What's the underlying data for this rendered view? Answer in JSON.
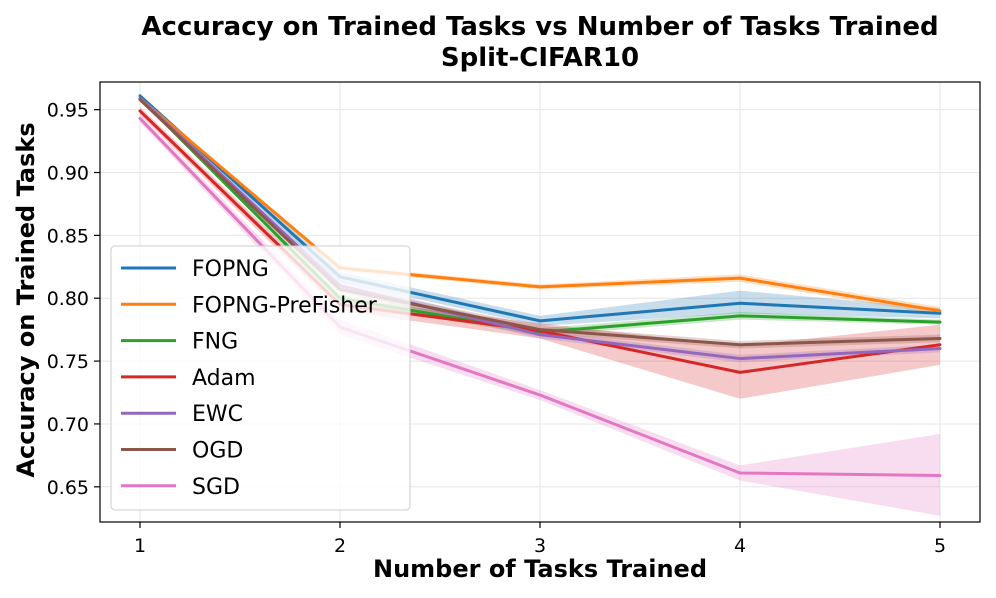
{
  "chart_data": {
    "type": "line",
    "title": "Accuracy on Trained Tasks vs Number of Tasks Trained",
    "subtitle": "Split-CIFAR10",
    "xlabel": "Number of Tasks Trained",
    "ylabel": "Accuracy on Trained Tasks",
    "x": [
      1,
      2,
      3,
      4,
      5
    ],
    "xlim": [
      0.8,
      5.2
    ],
    "ylim": [
      0.622,
      0.972
    ],
    "xticks": [
      "1",
      "2",
      "3",
      "4",
      "5"
    ],
    "yticks": [
      "0.65",
      "0.70",
      "0.75",
      "0.80",
      "0.85",
      "0.90",
      "0.95"
    ],
    "ytick_values": [
      0.65,
      0.7,
      0.75,
      0.8,
      0.85,
      0.9,
      0.95
    ],
    "grid": true,
    "legend_position": "center-left",
    "series": [
      {
        "name": "FOPNG",
        "color": "#1f77b4",
        "values": [
          0.961,
          0.817,
          0.782,
          0.796,
          0.788
        ],
        "lower": [
          0.96,
          0.813,
          0.778,
          0.788,
          0.784
        ],
        "upper": [
          0.962,
          0.821,
          0.786,
          0.806,
          0.792
        ]
      },
      {
        "name": "FOPNG-PreFisher",
        "color": "#ff7f0e",
        "values": [
          0.959,
          0.824,
          0.809,
          0.816,
          0.79
        ],
        "lower": [
          0.958,
          0.822,
          0.807,
          0.813,
          0.787
        ],
        "upper": [
          0.96,
          0.826,
          0.811,
          0.819,
          0.793
        ]
      },
      {
        "name": "FNG",
        "color": "#2ca02c",
        "values": [
          0.959,
          0.8,
          0.773,
          0.786,
          0.781
        ],
        "lower": [
          0.958,
          0.797,
          0.77,
          0.783,
          0.779
        ],
        "upper": [
          0.96,
          0.803,
          0.776,
          0.789,
          0.783
        ]
      },
      {
        "name": "Adam",
        "color": "#d62728",
        "values": [
          0.949,
          0.795,
          0.774,
          0.741,
          0.763
        ],
        "lower": [
          0.946,
          0.79,
          0.768,
          0.72,
          0.747
        ],
        "upper": [
          0.952,
          0.8,
          0.78,
          0.762,
          0.779
        ]
      },
      {
        "name": "EWC",
        "color": "#9467bd",
        "values": [
          0.959,
          0.81,
          0.771,
          0.752,
          0.76
        ],
        "lower": [
          0.958,
          0.806,
          0.768,
          0.749,
          0.757
        ],
        "upper": [
          0.96,
          0.814,
          0.774,
          0.755,
          0.763
        ]
      },
      {
        "name": "OGD",
        "color": "#8c564b",
        "values": [
          0.958,
          0.807,
          0.775,
          0.763,
          0.768
        ],
        "lower": [
          0.957,
          0.804,
          0.772,
          0.76,
          0.765
        ],
        "upper": [
          0.959,
          0.81,
          0.778,
          0.766,
          0.771
        ]
      },
      {
        "name": "SGD",
        "color": "#e377c2",
        "values": [
          0.943,
          0.777,
          0.723,
          0.661,
          0.659
        ],
        "lower": [
          0.94,
          0.771,
          0.719,
          0.655,
          0.627
        ],
        "upper": [
          0.946,
          0.783,
          0.727,
          0.667,
          0.692
        ]
      }
    ]
  }
}
